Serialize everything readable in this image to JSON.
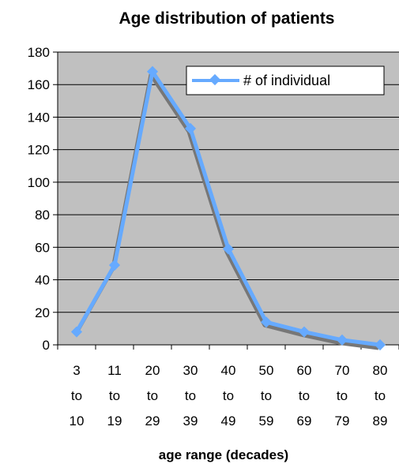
{
  "chart_data": {
    "type": "line",
    "title": "Age distribution of patients",
    "xlabel": "age range (decades)",
    "ylabel": "",
    "categories": [
      [
        "3",
        "to",
        "10"
      ],
      [
        "11",
        "to",
        "19"
      ],
      [
        "20",
        "to",
        "29"
      ],
      [
        "30",
        "to",
        "39"
      ],
      [
        "40",
        "to",
        "49"
      ],
      [
        "50",
        "to",
        "59"
      ],
      [
        "60",
        "to",
        "69"
      ],
      [
        "70",
        "to",
        "79"
      ],
      [
        "80",
        "to",
        "89"
      ]
    ],
    "series": [
      {
        "name": "# of individual",
        "values": [
          8,
          49,
          168,
          133,
          59,
          14,
          8,
          3,
          0
        ]
      }
    ],
    "ylim": [
      0,
      180
    ],
    "yticks": [
      0,
      20,
      40,
      60,
      80,
      100,
      120,
      140,
      160,
      180
    ],
    "grid": true,
    "legend": "top-right",
    "colors": {
      "line": "#66aaff",
      "shadow": "#777777",
      "plot_background": "#c0c0c0",
      "gridline": "#000000"
    }
  }
}
